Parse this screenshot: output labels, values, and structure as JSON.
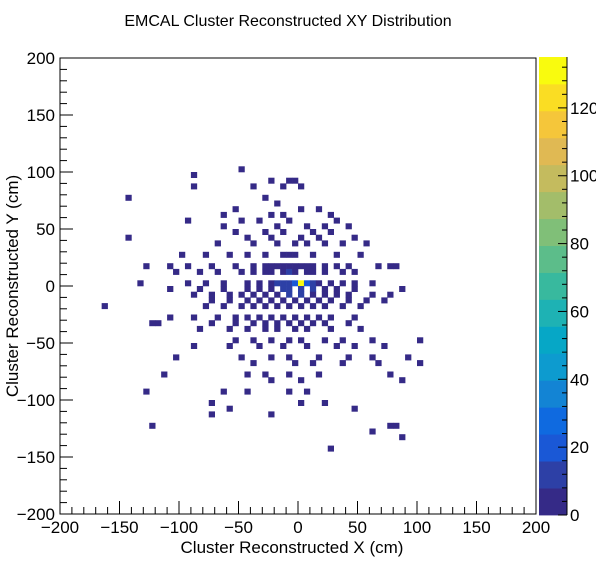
{
  "chart_data": {
    "type": "heatmap",
    "title": "EMCAL Cluster Reconstructed XY Distribution",
    "xlabel": "Cluster Reconstructed X (cm)",
    "ylabel": "Cluster Reconstructed Y (cm)",
    "xlim": [
      -200,
      200
    ],
    "ylim": [
      -200,
      200
    ],
    "xticks": [
      -200,
      -150,
      -100,
      -50,
      0,
      50,
      100,
      150,
      200
    ],
    "yticks": [
      -200,
      -150,
      -100,
      -50,
      0,
      50,
      100,
      150,
      200
    ],
    "xtick_labels": [
      "−200",
      "−150",
      "−100",
      "−50",
      "0",
      "50",
      "100",
      "150",
      "200"
    ],
    "ytick_labels": [
      "−200",
      "−150",
      "−100",
      "−50",
      "0",
      "50",
      "100",
      "150",
      "200"
    ],
    "bin_width": 5,
    "zlim": [
      0,
      135
    ],
    "zticks": [
      0,
      20,
      40,
      60,
      80,
      100,
      120
    ],
    "ztick_labels": [
      "0",
      "20",
      "40",
      "60",
      "80",
      "100",
      "120"
    ],
    "colormap": [
      "#352a87",
      "#2d40a6",
      "#1a58d6",
      "#0f6ae0",
      "#1384d4",
      "#0d9bcf",
      "#06a7c6",
      "#1eb2b4",
      "#38b99e",
      "#5cbd8a",
      "#80bf78",
      "#a3bd6a",
      "#c4bb5e",
      "#e0b953",
      "#f5c63a",
      "#fadd23",
      "#f9fb0e"
    ],
    "bins": [
      [
        -50,
        100,
        1
      ],
      [
        -90,
        95,
        1
      ],
      [
        -90,
        85,
        1
      ],
      [
        -25,
        90,
        1
      ],
      [
        -10,
        90,
        1
      ],
      [
        -5,
        90,
        1
      ],
      [
        -40,
        85,
        1
      ],
      [
        -15,
        85,
        1
      ],
      [
        0,
        85,
        1
      ],
      [
        -145,
        75,
        1
      ],
      [
        -30,
        75,
        1
      ],
      [
        -20,
        70,
        1
      ],
      [
        -55,
        65,
        1
      ],
      [
        0,
        65,
        1
      ],
      [
        15,
        65,
        1
      ],
      [
        -65,
        60,
        1
      ],
      [
        -25,
        60,
        1
      ],
      [
        -15,
        60,
        1
      ],
      [
        25,
        60,
        1
      ],
      [
        -95,
        55,
        1
      ],
      [
        -50,
        55,
        1
      ],
      [
        -35,
        55,
        1
      ],
      [
        -10,
        55,
        1
      ],
      [
        30,
        55,
        1
      ],
      [
        -65,
        50,
        1
      ],
      [
        -20,
        50,
        1
      ],
      [
        5,
        50,
        1
      ],
      [
        20,
        50,
        1
      ],
      [
        40,
        50,
        1
      ],
      [
        -55,
        45,
        1
      ],
      [
        -30,
        45,
        1
      ],
      [
        -15,
        45,
        1
      ],
      [
        10,
        45,
        1
      ],
      [
        25,
        45,
        1
      ],
      [
        -145,
        40,
        1
      ],
      [
        -45,
        40,
        1
      ],
      [
        -25,
        40,
        1
      ],
      [
        0,
        40,
        1
      ],
      [
        15,
        40,
        1
      ],
      [
        45,
        40,
        1
      ],
      [
        -70,
        35,
        1
      ],
      [
        -40,
        35,
        1
      ],
      [
        -20,
        35,
        1
      ],
      [
        -5,
        35,
        1
      ],
      [
        5,
        35,
        1
      ],
      [
        20,
        35,
        1
      ],
      [
        35,
        35,
        1
      ],
      [
        55,
        35,
        1
      ],
      [
        -100,
        25,
        1
      ],
      [
        -80,
        25,
        1
      ],
      [
        -60,
        25,
        1
      ],
      [
        -45,
        25,
        1
      ],
      [
        -30,
        25,
        1
      ],
      [
        -15,
        25,
        2
      ],
      [
        -10,
        25,
        3
      ],
      [
        -5,
        25,
        2
      ],
      [
        10,
        25,
        2
      ],
      [
        30,
        25,
        1
      ],
      [
        50,
        25,
        1
      ],
      [
        -130,
        15,
        1
      ],
      [
        -110,
        15,
        1
      ],
      [
        -95,
        15,
        1
      ],
      [
        -75,
        15,
        1
      ],
      [
        -55,
        15,
        1
      ],
      [
        -40,
        15,
        2
      ],
      [
        -30,
        15,
        3
      ],
      [
        -25,
        15,
        2
      ],
      [
        -20,
        15,
        4
      ],
      [
        -15,
        15,
        3
      ],
      [
        -10,
        15,
        5
      ],
      [
        -5,
        15,
        4
      ],
      [
        0,
        15,
        4
      ],
      [
        5,
        15,
        3
      ],
      [
        10,
        15,
        3
      ],
      [
        20,
        15,
        2
      ],
      [
        30,
        15,
        2
      ],
      [
        40,
        15,
        1
      ],
      [
        65,
        15,
        1
      ],
      [
        75,
        15,
        1
      ],
      [
        80,
        15,
        1
      ],
      [
        -105,
        10,
        1
      ],
      [
        -85,
        10,
        1
      ],
      [
        -70,
        10,
        1
      ],
      [
        -50,
        10,
        1
      ],
      [
        -40,
        10,
        2
      ],
      [
        -30,
        10,
        3
      ],
      [
        -25,
        10,
        4
      ],
      [
        -15,
        10,
        6
      ],
      [
        -10,
        10,
        8
      ],
      [
        -5,
        10,
        7
      ],
      [
        5,
        10,
        6
      ],
      [
        10,
        10,
        4
      ],
      [
        20,
        10,
        3
      ],
      [
        35,
        10,
        1
      ],
      [
        45,
        10,
        1
      ],
      [
        -135,
        0,
        1
      ],
      [
        -95,
        0,
        1
      ],
      [
        -80,
        0,
        1
      ],
      [
        -65,
        0,
        1
      ],
      [
        -45,
        0,
        2
      ],
      [
        -35,
        0,
        3
      ],
      [
        -25,
        0,
        6
      ],
      [
        -20,
        0,
        8
      ],
      [
        -15,
        0,
        12
      ],
      [
        -10,
        0,
        14
      ],
      [
        -5,
        0,
        18
      ],
      [
        0,
        0,
        135
      ],
      [
        5,
        0,
        16
      ],
      [
        10,
        0,
        12
      ],
      [
        15,
        0,
        7
      ],
      [
        25,
        0,
        5
      ],
      [
        35,
        0,
        2
      ],
      [
        45,
        0,
        2
      ],
      [
        60,
        0,
        1
      ],
      [
        -110,
        -5,
        1
      ],
      [
        -85,
        -5,
        1
      ],
      [
        -65,
        -5,
        1
      ],
      [
        -45,
        -5,
        2
      ],
      [
        -35,
        -5,
        4
      ],
      [
        -25,
        -5,
        7
      ],
      [
        -15,
        -5,
        10
      ],
      [
        -10,
        -5,
        13
      ],
      [
        0,
        -5,
        12
      ],
      [
        10,
        -5,
        8
      ],
      [
        20,
        -5,
        5
      ],
      [
        30,
        -5,
        3
      ],
      [
        45,
        -5,
        2
      ],
      [
        85,
        -5,
        1
      ],
      [
        -90,
        -10,
        1
      ],
      [
        -75,
        -10,
        1
      ],
      [
        -60,
        -10,
        2
      ],
      [
        -50,
        -10,
        2
      ],
      [
        -40,
        -10,
        3
      ],
      [
        -30,
        -10,
        5
      ],
      [
        -20,
        -10,
        7
      ],
      [
        -10,
        -10,
        9
      ],
      [
        0,
        -10,
        8
      ],
      [
        10,
        -10,
        6
      ],
      [
        20,
        -10,
        4
      ],
      [
        30,
        -10,
        3
      ],
      [
        40,
        -10,
        2
      ],
      [
        60,
        -10,
        1
      ],
      [
        75,
        -10,
        1
      ],
      [
        -75,
        -15,
        1
      ],
      [
        -60,
        -15,
        2
      ],
      [
        -45,
        -15,
        2
      ],
      [
        -35,
        -15,
        3
      ],
      [
        -25,
        -15,
        4
      ],
      [
        -15,
        -15,
        5
      ],
      [
        -5,
        -15,
        5
      ],
      [
        5,
        -15,
        4
      ],
      [
        15,
        -15,
        3
      ],
      [
        25,
        -15,
        2
      ],
      [
        40,
        -15,
        2
      ],
      [
        55,
        -15,
        1
      ],
      [
        70,
        -15,
        1
      ],
      [
        -165,
        -20,
        1
      ],
      [
        -80,
        -20,
        1
      ],
      [
        -65,
        -20,
        1
      ],
      [
        -50,
        -20,
        2
      ],
      [
        -40,
        -20,
        2
      ],
      [
        -30,
        -20,
        3
      ],
      [
        -20,
        -20,
        3
      ],
      [
        -10,
        -20,
        4
      ],
      [
        0,
        -20,
        3
      ],
      [
        10,
        -20,
        3
      ],
      [
        20,
        -20,
        2
      ],
      [
        35,
        -20,
        1
      ],
      [
        50,
        -20,
        1
      ],
      [
        -110,
        -30,
        1
      ],
      [
        -90,
        -30,
        1
      ],
      [
        -70,
        -30,
        1
      ],
      [
        -55,
        -30,
        1
      ],
      [
        -45,
        -30,
        2
      ],
      [
        -35,
        -30,
        2
      ],
      [
        -25,
        -30,
        3
      ],
      [
        -15,
        -30,
        3
      ],
      [
        -5,
        -30,
        3
      ],
      [
        5,
        -30,
        2
      ],
      [
        15,
        -30,
        2
      ],
      [
        25,
        -30,
        1
      ],
      [
        45,
        -30,
        1
      ],
      [
        -125,
        -35,
        1
      ],
      [
        -120,
        -35,
        1
      ],
      [
        -75,
        -35,
        1
      ],
      [
        -55,
        -35,
        1
      ],
      [
        -40,
        -35,
        1
      ],
      [
        -30,
        -35,
        2
      ],
      [
        -20,
        -35,
        2
      ],
      [
        -10,
        -35,
        2
      ],
      [
        0,
        -35,
        2
      ],
      [
        10,
        -35,
        1
      ],
      [
        20,
        -35,
        1
      ],
      [
        40,
        -35,
        1
      ],
      [
        -85,
        -40,
        1
      ],
      [
        -60,
        -40,
        1
      ],
      [
        -45,
        -40,
        1
      ],
      [
        -30,
        -40,
        1
      ],
      [
        -20,
        -40,
        2
      ],
      [
        -5,
        -40,
        2
      ],
      [
        5,
        -40,
        1
      ],
      [
        25,
        -40,
        1
      ],
      [
        50,
        -40,
        1
      ],
      [
        -55,
        -50,
        1
      ],
      [
        -40,
        -50,
        1
      ],
      [
        -25,
        -50,
        1
      ],
      [
        -10,
        -50,
        1
      ],
      [
        0,
        -50,
        1
      ],
      [
        20,
        -50,
        1
      ],
      [
        35,
        -50,
        1
      ],
      [
        60,
        -50,
        1
      ],
      [
        100,
        -50,
        1
      ],
      [
        -90,
        -55,
        1
      ],
      [
        -60,
        -55,
        1
      ],
      [
        -35,
        -55,
        1
      ],
      [
        -15,
        -55,
        1
      ],
      [
        5,
        -55,
        1
      ],
      [
        30,
        -55,
        1
      ],
      [
        45,
        -55,
        1
      ],
      [
        70,
        -55,
        1
      ],
      [
        -105,
        -65,
        1
      ],
      [
        -50,
        -65,
        1
      ],
      [
        -25,
        -65,
        1
      ],
      [
        -10,
        -65,
        1
      ],
      [
        15,
        -65,
        1
      ],
      [
        40,
        -65,
        1
      ],
      [
        60,
        -65,
        1
      ],
      [
        90,
        -65,
        1
      ],
      [
        -40,
        -70,
        1
      ],
      [
        -5,
        -70,
        1
      ],
      [
        10,
        -70,
        1
      ],
      [
        35,
        -70,
        1
      ],
      [
        65,
        -70,
        1
      ],
      [
        100,
        -70,
        1
      ],
      [
        -115,
        -80,
        1
      ],
      [
        -45,
        -80,
        1
      ],
      [
        -30,
        -80,
        1
      ],
      [
        -10,
        -80,
        1
      ],
      [
        15,
        -80,
        1
      ],
      [
        75,
        -80,
        1
      ],
      [
        -25,
        -85,
        1
      ],
      [
        0,
        -85,
        1
      ],
      [
        85,
        -85,
        1
      ],
      [
        -130,
        -95,
        1
      ],
      [
        -65,
        -95,
        1
      ],
      [
        -45,
        -95,
        1
      ],
      [
        -10,
        -95,
        1
      ],
      [
        5,
        -95,
        1
      ],
      [
        -75,
        -105,
        1
      ],
      [
        0,
        -105,
        1
      ],
      [
        20,
        -105,
        1
      ],
      [
        -75,
        -115,
        1
      ],
      [
        -60,
        -110,
        1
      ],
      [
        -25,
        -115,
        1
      ],
      [
        45,
        -110,
        1
      ],
      [
        -125,
        -125,
        1
      ],
      [
        60,
        -130,
        1
      ],
      [
        75,
        -125,
        1
      ],
      [
        80,
        -125,
        1
      ],
      [
        85,
        -135,
        1
      ],
      [
        25,
        -145,
        1
      ]
    ]
  }
}
